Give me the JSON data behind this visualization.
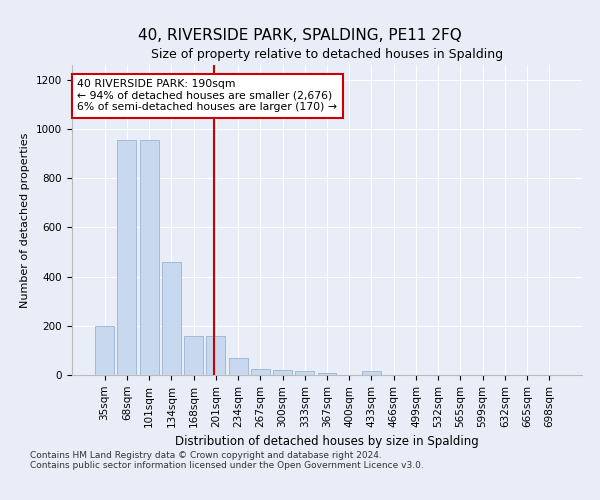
{
  "title": "40, RIVERSIDE PARK, SPALDING, PE11 2FQ",
  "subtitle": "Size of property relative to detached houses in Spalding",
  "xlabel": "Distribution of detached houses by size in Spalding",
  "ylabel": "Number of detached properties",
  "categories": [
    "35sqm",
    "68sqm",
    "101sqm",
    "134sqm",
    "168sqm",
    "201sqm",
    "234sqm",
    "267sqm",
    "300sqm",
    "333sqm",
    "367sqm",
    "400sqm",
    "433sqm",
    "466sqm",
    "499sqm",
    "532sqm",
    "565sqm",
    "599sqm",
    "632sqm",
    "665sqm",
    "698sqm"
  ],
  "values": [
    200,
    955,
    955,
    460,
    160,
    160,
    70,
    25,
    20,
    15,
    10,
    0,
    15,
    0,
    0,
    0,
    0,
    0,
    0,
    0,
    0
  ],
  "bar_color": "#c8d9ef",
  "bar_edgecolor": "#9ab4d4",
  "annotation_text": "40 RIVERSIDE PARK: 190sqm\n← 94% of detached houses are smaller (2,676)\n6% of semi-detached houses are larger (170) →",
  "annotation_box_edgecolor": "#cc0000",
  "footer_line1": "Contains HM Land Registry data © Crown copyright and database right 2024.",
  "footer_line2": "Contains public sector information licensed under the Open Government Licence v3.0.",
  "ylim": [
    0,
    1260
  ],
  "yticks": [
    0,
    200,
    400,
    600,
    800,
    1000,
    1200
  ],
  "bg_color": "#e8edf8",
  "plot_bg_color": "#e8edf8",
  "red_line_color": "#cc0000",
  "grid_color": "#ffffff",
  "title_fontsize": 11,
  "subtitle_fontsize": 9,
  "ylabel_fontsize": 8,
  "xlabel_fontsize": 8.5,
  "tick_fontsize": 7.5,
  "footer_fontsize": 6.5
}
